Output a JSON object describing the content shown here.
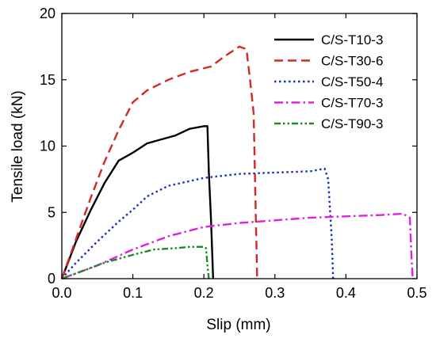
{
  "chart_data": {
    "type": "line",
    "xlabel": "Slip (mm)",
    "ylabel": "Tensile load (kN)",
    "xlim": [
      0,
      0.5
    ],
    "ylim": [
      0,
      20
    ],
    "xticks": [
      "0.0",
      "0.1",
      "0.2",
      "0.3",
      "0.4",
      "0.5"
    ],
    "yticks": [
      "0",
      "5",
      "10",
      "15",
      "20"
    ],
    "grid": false,
    "legend_position": "top-right",
    "series": [
      {
        "name": "C/S-T10-3",
        "color": "#000000",
        "dash": "solid",
        "x": [
          0,
          0.02,
          0.04,
          0.06,
          0.08,
          0.1,
          0.12,
          0.14,
          0.16,
          0.18,
          0.2,
          0.205,
          0.207,
          0.21,
          0.212,
          0.213
        ],
        "y": [
          0,
          2.8,
          5.1,
          7.2,
          8.9,
          9.5,
          10.2,
          10.5,
          10.8,
          11.3,
          11.5,
          11.5,
          8.0,
          4.5,
          1.5,
          0
        ]
      },
      {
        "name": "C/S-T30-6",
        "color": "#d42a1e",
        "dash": "long-dash",
        "x": [
          0,
          0.02,
          0.04,
          0.06,
          0.08,
          0.1,
          0.12,
          0.15,
          0.18,
          0.21,
          0.23,
          0.25,
          0.26,
          0.265,
          0.268,
          0.27,
          0.273,
          0.275
        ],
        "y": [
          0,
          3.0,
          6.0,
          8.8,
          11.2,
          13.3,
          14.2,
          15.0,
          15.6,
          16.0,
          16.8,
          17.5,
          17.3,
          15.0,
          13.5,
          12.5,
          5.0,
          0
        ]
      },
      {
        "name": "C/S-T50-4",
        "color": "#1c2fb8",
        "dash": "dotted",
        "x": [
          0,
          0.02,
          0.05,
          0.08,
          0.1,
          0.12,
          0.15,
          0.2,
          0.25,
          0.3,
          0.35,
          0.37,
          0.375,
          0.38,
          0.382
        ],
        "y": [
          0,
          1.2,
          2.8,
          4.3,
          5.2,
          6.2,
          7.0,
          7.6,
          7.9,
          8.0,
          8.1,
          8.3,
          7.5,
          3.0,
          0
        ]
      },
      {
        "name": "C/S-T70-3",
        "color": "#e020e0",
        "dash": "dash-dot",
        "x": [
          0,
          0.05,
          0.1,
          0.15,
          0.2,
          0.25,
          0.3,
          0.35,
          0.4,
          0.45,
          0.48,
          0.49,
          0.492,
          0.494
        ],
        "y": [
          0,
          1.0,
          2.2,
          3.2,
          3.9,
          4.2,
          4.4,
          4.6,
          4.7,
          4.8,
          4.9,
          4.6,
          2.0,
          0
        ]
      },
      {
        "name": "C/S-T90-3",
        "color": "#1f8a1f",
        "dash": "dash-dot-dot",
        "x": [
          0,
          0.03,
          0.06,
          0.1,
          0.13,
          0.16,
          0.18,
          0.2,
          0.203,
          0.205,
          0.207
        ],
        "y": [
          0,
          0.6,
          1.2,
          1.8,
          2.2,
          2.3,
          2.4,
          2.4,
          2.3,
          1.0,
          0
        ]
      }
    ]
  }
}
